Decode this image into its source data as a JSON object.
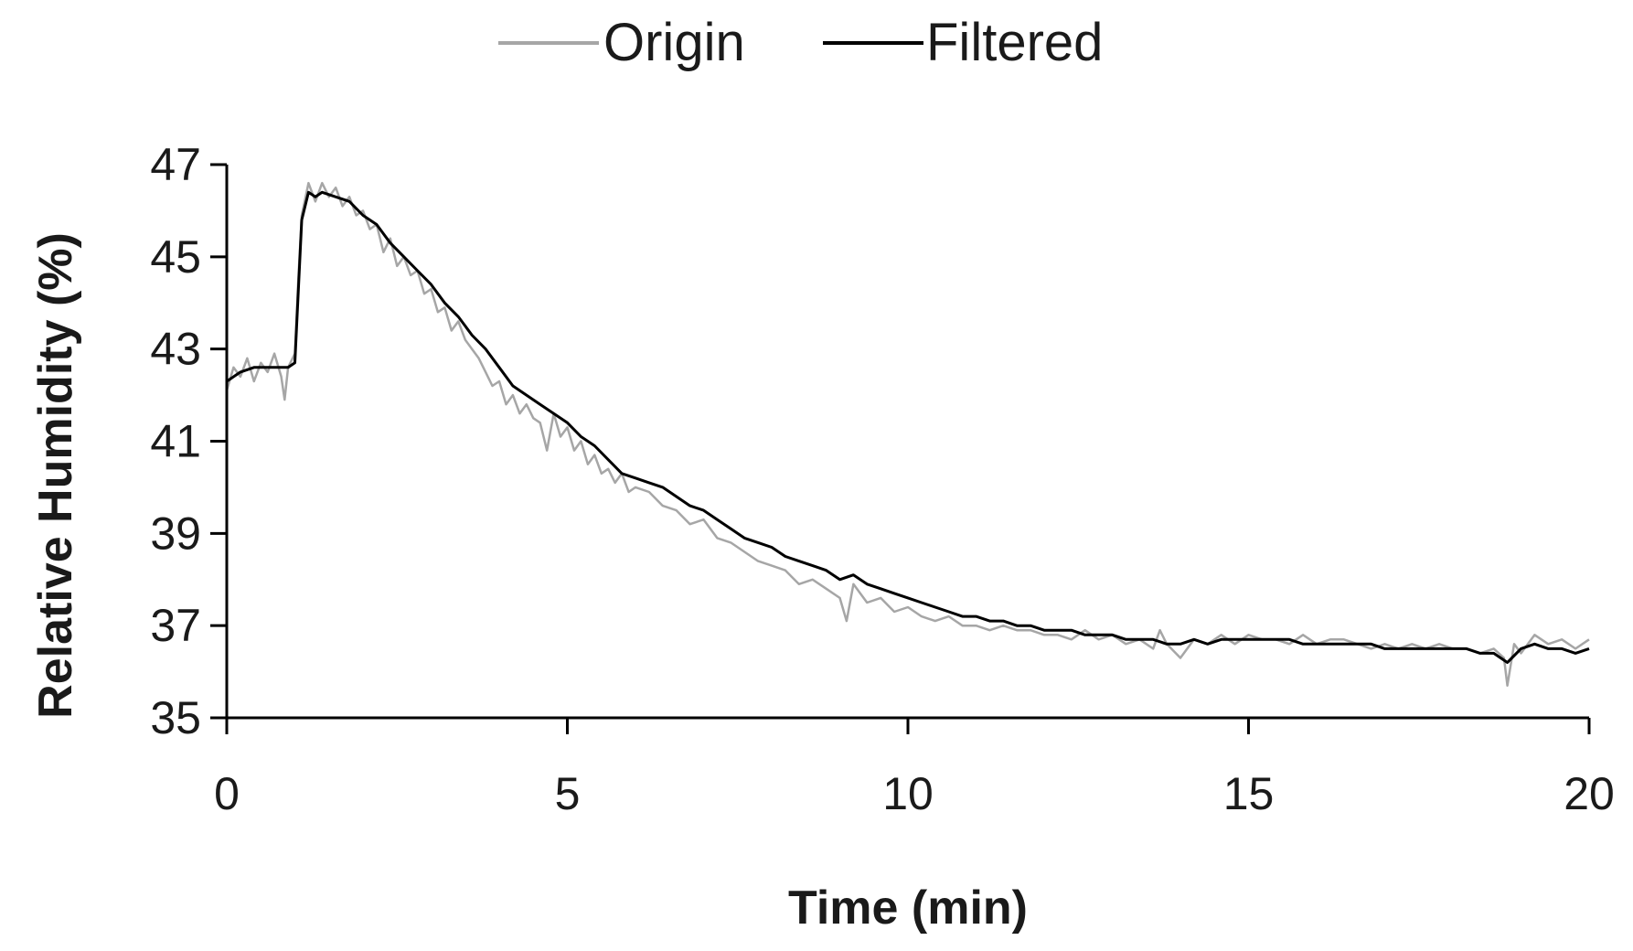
{
  "chart_data": {
    "type": "line",
    "xlabel": "Time (min)",
    "ylabel": "Relative Humidity (%)",
    "xlim": [
      0,
      20
    ],
    "ylim": [
      35,
      47
    ],
    "xticks": [
      "0",
      "5",
      "10",
      "15",
      "20"
    ],
    "yticks": [
      "35",
      "37",
      "39",
      "41",
      "43",
      "45",
      "47"
    ],
    "grid": false,
    "legend_position": "top",
    "series": [
      {
        "name": "Origin",
        "color": "#a6a6a6",
        "x": [
          0,
          0.1,
          0.2,
          0.3,
          0.4,
          0.5,
          0.6,
          0.7,
          0.8,
          0.85,
          0.9,
          1.0,
          1.05,
          1.1,
          1.2,
          1.3,
          1.4,
          1.5,
          1.6,
          1.7,
          1.8,
          1.9,
          2.0,
          2.1,
          2.2,
          2.3,
          2.4,
          2.5,
          2.6,
          2.7,
          2.8,
          2.9,
          3.0,
          3.1,
          3.2,
          3.3,
          3.4,
          3.5,
          3.6,
          3.7,
          3.8,
          3.9,
          4.0,
          4.1,
          4.2,
          4.3,
          4.4,
          4.5,
          4.6,
          4.7,
          4.8,
          4.9,
          5.0,
          5.1,
          5.2,
          5.3,
          5.4,
          5.5,
          5.6,
          5.7,
          5.8,
          5.9,
          6.0,
          6.2,
          6.4,
          6.6,
          6.8,
          7.0,
          7.2,
          7.4,
          7.6,
          7.8,
          8.0,
          8.2,
          8.4,
          8.6,
          8.8,
          9.0,
          9.1,
          9.2,
          9.4,
          9.6,
          9.8,
          10.0,
          10.2,
          10.4,
          10.6,
          10.8,
          11.0,
          11.2,
          11.4,
          11.6,
          11.8,
          12.0,
          12.2,
          12.4,
          12.6,
          12.8,
          13.0,
          13.2,
          13.4,
          13.6,
          13.7,
          13.8,
          14.0,
          14.2,
          14.4,
          14.6,
          14.8,
          15.0,
          15.2,
          15.4,
          15.6,
          15.8,
          16.0,
          16.2,
          16.4,
          16.6,
          16.8,
          17.0,
          17.2,
          17.4,
          17.6,
          17.8,
          18.0,
          18.2,
          18.4,
          18.6,
          18.75,
          18.8,
          18.9,
          19.0,
          19.2,
          19.4,
          19.6,
          19.8,
          20.0
        ],
        "values": [
          42.1,
          42.6,
          42.4,
          42.8,
          42.3,
          42.7,
          42.5,
          42.9,
          42.4,
          41.9,
          42.6,
          42.9,
          44.5,
          45.9,
          46.6,
          46.2,
          46.6,
          46.3,
          46.5,
          46.1,
          46.3,
          45.9,
          46.0,
          45.6,
          45.7,
          45.1,
          45.4,
          44.8,
          45.0,
          44.6,
          44.7,
          44.2,
          44.3,
          43.8,
          43.9,
          43.4,
          43.6,
          43.2,
          43.0,
          42.8,
          42.5,
          42.2,
          42.3,
          41.8,
          42.0,
          41.6,
          41.8,
          41.5,
          41.4,
          40.8,
          41.6,
          41.1,
          41.3,
          40.8,
          41.0,
          40.5,
          40.7,
          40.3,
          40.4,
          40.1,
          40.3,
          39.9,
          40.0,
          39.9,
          39.6,
          39.5,
          39.2,
          39.3,
          38.9,
          38.8,
          38.6,
          38.4,
          38.3,
          38.2,
          37.9,
          38.0,
          37.8,
          37.6,
          37.1,
          37.9,
          37.5,
          37.6,
          37.3,
          37.4,
          37.2,
          37.1,
          37.2,
          37.0,
          37.0,
          36.9,
          37.0,
          36.9,
          36.9,
          36.8,
          36.8,
          36.7,
          36.9,
          36.7,
          36.8,
          36.6,
          36.7,
          36.5,
          36.9,
          36.6,
          36.3,
          36.7,
          36.6,
          36.8,
          36.6,
          36.8,
          36.7,
          36.7,
          36.6,
          36.8,
          36.6,
          36.7,
          36.7,
          36.6,
          36.5,
          36.6,
          36.5,
          36.6,
          36.5,
          36.6,
          36.5,
          36.5,
          36.4,
          36.5,
          36.3,
          35.7,
          36.6,
          36.4,
          36.8,
          36.6,
          36.7,
          36.5,
          36.7
        ]
      },
      {
        "name": "Filtered",
        "color": "#000000",
        "x": [
          0,
          0.2,
          0.4,
          0.6,
          0.8,
          0.9,
          1.0,
          1.1,
          1.2,
          1.3,
          1.4,
          1.6,
          1.8,
          2.0,
          2.2,
          2.4,
          2.6,
          2.8,
          3.0,
          3.2,
          3.4,
          3.6,
          3.8,
          4.0,
          4.2,
          4.4,
          4.6,
          4.8,
          5.0,
          5.2,
          5.4,
          5.6,
          5.8,
          6.0,
          6.2,
          6.4,
          6.6,
          6.8,
          7.0,
          7.2,
          7.4,
          7.6,
          7.8,
          8.0,
          8.2,
          8.4,
          8.6,
          8.8,
          9.0,
          9.2,
          9.4,
          9.6,
          9.8,
          10.0,
          10.2,
          10.4,
          10.6,
          10.8,
          11.0,
          11.2,
          11.4,
          11.6,
          11.8,
          12.0,
          12.2,
          12.4,
          12.6,
          12.8,
          13.0,
          13.2,
          13.4,
          13.6,
          13.8,
          14.0,
          14.2,
          14.4,
          14.6,
          14.8,
          15.0,
          15.2,
          15.4,
          15.6,
          15.8,
          16.0,
          16.2,
          16.4,
          16.6,
          16.8,
          17.0,
          17.2,
          17.4,
          17.6,
          17.8,
          18.0,
          18.2,
          18.4,
          18.6,
          18.8,
          19.0,
          19.2,
          19.4,
          19.6,
          19.8,
          20.0
        ],
        "values": [
          42.3,
          42.5,
          42.6,
          42.6,
          42.6,
          42.6,
          42.7,
          45.8,
          46.4,
          46.3,
          46.4,
          46.3,
          46.2,
          45.9,
          45.7,
          45.3,
          45.0,
          44.7,
          44.4,
          44.0,
          43.7,
          43.3,
          43.0,
          42.6,
          42.2,
          42.0,
          41.8,
          41.6,
          41.4,
          41.1,
          40.9,
          40.6,
          40.3,
          40.2,
          40.1,
          40.0,
          39.8,
          39.6,
          39.5,
          39.3,
          39.1,
          38.9,
          38.8,
          38.7,
          38.5,
          38.4,
          38.3,
          38.2,
          38.0,
          38.1,
          37.9,
          37.8,
          37.7,
          37.6,
          37.5,
          37.4,
          37.3,
          37.2,
          37.2,
          37.1,
          37.1,
          37.0,
          37.0,
          36.9,
          36.9,
          36.9,
          36.8,
          36.8,
          36.8,
          36.7,
          36.7,
          36.7,
          36.6,
          36.6,
          36.7,
          36.6,
          36.7,
          36.7,
          36.7,
          36.7,
          36.7,
          36.7,
          36.6,
          36.6,
          36.6,
          36.6,
          36.6,
          36.6,
          36.5,
          36.5,
          36.5,
          36.5,
          36.5,
          36.5,
          36.5,
          36.4,
          36.4,
          36.2,
          36.5,
          36.6,
          36.5,
          36.5,
          36.4,
          36.5
        ]
      }
    ]
  }
}
